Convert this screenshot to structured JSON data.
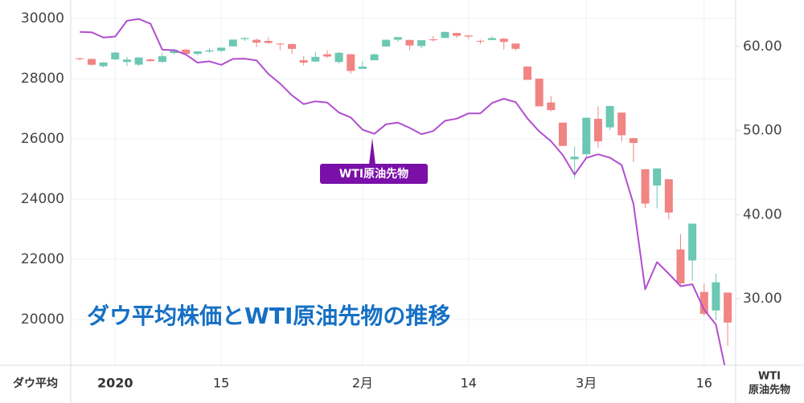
{
  "chart_data": {
    "type": "candlestick",
    "title": "ダウ平均株価とWTI原油先物の推移",
    "categories": [
      null,
      null,
      null,
      "2020",
      null,
      null,
      null,
      null,
      null,
      null,
      null,
      null,
      "15",
      null,
      null,
      null,
      null,
      null,
      null,
      null,
      null,
      null,
      null,
      null,
      "2月",
      null,
      null,
      null,
      null,
      null,
      null,
      null,
      null,
      "14",
      null,
      null,
      null,
      null,
      null,
      null,
      null,
      null,
      null,
      "3月",
      null,
      null,
      null,
      null,
      null,
      null,
      null,
      null,
      null,
      "16",
      null,
      null
    ],
    "series": [
      {
        "name": "ダウ平均",
        "type": "candlestick",
        "up_color": "#6cc7b3",
        "down_color": "#f08584",
        "open": [
          28675,
          28654,
          28414,
          28639,
          28554,
          28465,
          28639,
          28556,
          28851,
          28963,
          28823,
          28901,
          28924,
          29072,
          29313,
          29291,
          29255,
          29165,
          29150,
          28613,
          28570,
          28811,
          28553,
          28813,
          28325,
          28610,
          29066,
          29294,
          29287,
          29085,
          29309,
          29353,
          29518,
          29435,
          29257,
          29285,
          29328,
          29167,
          28403,
          27999,
          27208,
          26539,
          25321,
          25491,
          26667,
          26383,
          26872,
          26024,
          24992,
          24453,
          24660,
          22328,
          21962,
          20916,
          20301,
          20894
        ],
        "high": [
          28701,
          28665,
          28548,
          28872,
          28716,
          28709,
          28665,
          28866,
          28986,
          28997,
          28907,
          29010,
          29033,
          29298,
          29374,
          29332,
          29374,
          29187,
          29164,
          28759,
          28891,
          28944,
          28892,
          28813,
          28592,
          28833,
          29308,
          29380,
          29287,
          29277,
          29415,
          29568,
          29525,
          29441,
          29298,
          29406,
          29348,
          29167,
          28403,
          28011,
          27426,
          26539,
          25749,
          26706,
          27084,
          27102,
          26872,
          26035,
          24992,
          25020,
          24660,
          22838,
          23190,
          21189,
          21522,
          20894
        ],
        "low": [
          28608,
          28429,
          28377,
          28627,
          28418,
          28418,
          28565,
          28522,
          28809,
          28771,
          28778,
          28851,
          28893,
          29072,
          29253,
          29040,
          29160,
          28944,
          28820,
          28440,
          28553,
          28686,
          28502,
          28169,
          28322,
          28610,
          29066,
          29225,
          28947,
          29010,
          29230,
          29353,
          29353,
          29316,
          29154,
          29270,
          28966,
          28932,
          27961,
          27081,
          26917,
          25766,
          24681,
          25391,
          25707,
          26286,
          25911,
          25226,
          23706,
          23690,
          23328,
          21154,
          21285,
          20116,
          19978,
          19122
        ],
        "close": [
          28645,
          28462,
          28538,
          28868,
          28634,
          28703,
          28583,
          28745,
          28956,
          28823,
          28907,
          28940,
          29030,
          29297,
          29348,
          29196,
          29186,
          29160,
          28990,
          28535,
          28723,
          28734,
          28859,
          28256,
          28400,
          28807,
          29290,
          29380,
          29102,
          29276,
          29276,
          29551,
          29423,
          29398,
          29232,
          29348,
          29220,
          28992,
          27961,
          27081,
          26957,
          25766,
          25409,
          26703,
          25917,
          27091,
          26121,
          25865,
          23851,
          25018,
          23553,
          21200,
          23185,
          20189,
          21237,
          19899
        ]
      },
      {
        "name": "WTI原油先物",
        "type": "line",
        "axis": "y2",
        "color": "#b24ecf",
        "values": [
          61.72,
          61.68,
          61.06,
          61.18,
          63.05,
          63.27,
          62.7,
          59.61,
          59.56,
          59.04,
          58.08,
          58.23,
          57.81,
          58.52,
          58.54,
          58.34,
          56.74,
          55.59,
          54.19,
          53.14,
          53.48,
          53.33,
          52.14,
          51.56,
          50.11,
          49.61,
          50.75,
          50.95,
          50.32,
          49.57,
          49.94,
          51.17,
          51.42,
          52.05,
          52.05,
          53.29,
          53.78,
          53.38,
          51.43,
          49.9,
          48.73,
          47.09,
          44.76,
          46.75,
          47.18,
          46.78,
          45.9,
          41.28,
          31.13,
          34.36,
          32.98,
          31.5,
          31.73,
          28.7,
          26.95,
          20.37
        ]
      }
    ],
    "y2_label": [
      "WTI",
      "原油先物"
    ],
    "ylim": [
      18480,
      30613
    ],
    "yticks": [
      20000,
      22000,
      24000,
      26000,
      28000,
      30000
    ],
    "y2lim": [
      22.1,
      65.52
    ],
    "y2ticks": [
      {
        "value": 30,
        "label": "30.00"
      },
      {
        "value": 40,
        "label": "40.00"
      },
      {
        "value": 50,
        "label": "50.00"
      },
      {
        "value": 60,
        "label": "60.00"
      }
    ],
    "grid": true,
    "annotation_color": "#7a10a8",
    "title_color": "#1670c4"
  }
}
